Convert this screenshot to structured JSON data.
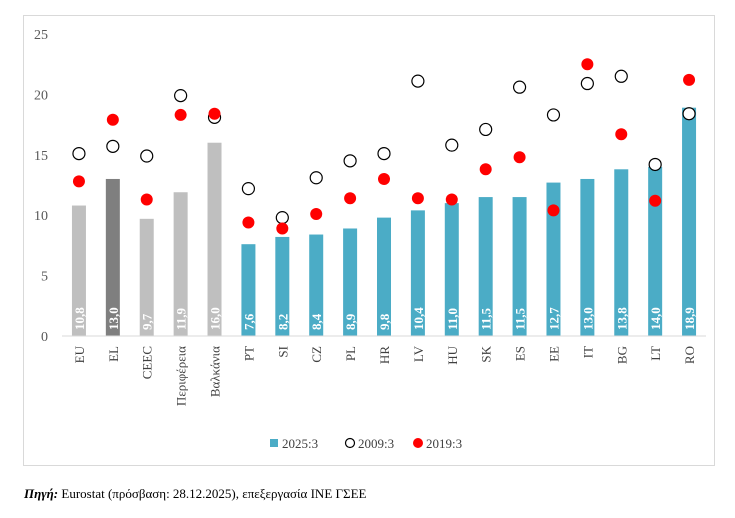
{
  "source": {
    "label": "Πηγή:",
    "text": "Eurostat (πρόσβαση: 28.12.2025), επεξεργασία ΙΝΕ ΓΣΕΕ"
  },
  "chart_data": {
    "type": "bar",
    "title": "",
    "xlabel": "",
    "ylabel": "",
    "ylim": [
      0,
      25
    ],
    "yticks": [
      "0",
      "5",
      "10",
      "15",
      "20",
      "25"
    ],
    "grid": false,
    "legend_position": "bottom",
    "categories": [
      "EU",
      "EL",
      "CEEC",
      "Περιφέρεια",
      "Βαλκάνια",
      "PT",
      "SI",
      "CZ",
      "PL",
      "HR",
      "LV",
      "HU",
      "SK",
      "ES",
      "EE",
      "IT",
      "BG",
      "LT",
      "RO"
    ],
    "value_labels": [
      "10,8",
      "13,0",
      "9,7",
      "11,9",
      "16,0",
      "7,6",
      "8,2",
      "8,4",
      "8,9",
      "9,8",
      "10,4",
      "11,0",
      "11,5",
      "11,5",
      "12,7",
      "13,0",
      "13,8",
      "14,0",
      "18,9"
    ],
    "bar_colors": [
      "#bfbfbf",
      "#7f7f7f",
      "#bfbfbf",
      "#bfbfbf",
      "#bfbfbf",
      "#4bacc6",
      "#4bacc6",
      "#4bacc6",
      "#4bacc6",
      "#4bacc6",
      "#4bacc6",
      "#4bacc6",
      "#4bacc6",
      "#4bacc6",
      "#4bacc6",
      "#4bacc6",
      "#4bacc6",
      "#4bacc6",
      "#4bacc6"
    ],
    "series": [
      {
        "name": "2025:3",
        "type": "bar",
        "color": "#4bacc6",
        "values": [
          10.8,
          13.0,
          9.7,
          11.9,
          16.0,
          7.6,
          8.2,
          8.4,
          8.9,
          9.8,
          10.4,
          11.0,
          11.5,
          11.5,
          12.7,
          13.0,
          13.8,
          14.0,
          18.9
        ]
      },
      {
        "name": "2009:3",
        "type": "scatter",
        "marker": "open-circle",
        "color": "#000000",
        "values": [
          15.1,
          15.7,
          14.9,
          19.9,
          18.1,
          12.2,
          9.8,
          13.1,
          14.5,
          15.1,
          21.1,
          15.8,
          17.1,
          20.6,
          18.3,
          20.9,
          21.5,
          14.2,
          18.4
        ]
      },
      {
        "name": "2019:3",
        "type": "scatter",
        "marker": "filled-circle",
        "color": "#ff0000",
        "values": [
          12.8,
          17.9,
          11.3,
          18.3,
          18.4,
          9.4,
          8.9,
          10.1,
          11.4,
          13.0,
          11.4,
          11.3,
          13.8,
          14.8,
          10.4,
          22.5,
          16.7,
          11.2,
          21.2
        ]
      }
    ]
  }
}
